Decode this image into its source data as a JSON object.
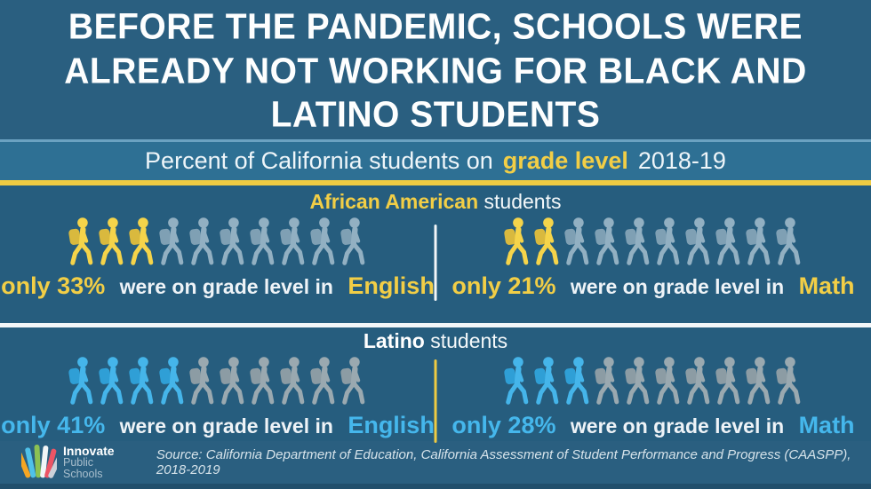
{
  "title": {
    "lines": [
      "BEFORE THE PANDEMIC, SCHOOLS WERE",
      "ALREADY NOT WORKING FOR BLACK AND",
      "LATINO STUDENTS"
    ]
  },
  "subtitle": {
    "prefix": "Percent of California students on",
    "highlight": "grade level",
    "suffix": "2018-19"
  },
  "colors": {
    "background": "#2a5f80",
    "subtitle_bar": "#2e7094",
    "gold_accent": "#efcb42",
    "section_bg": "#265d7e",
    "white_band": "#f3f6f8",
    "yellow_accent": "#f2ce46",
    "blue_accent": "#45b7ec"
  },
  "sections": [
    {
      "id": "african-american",
      "heading_highlight": "African American",
      "heading_rest": "students",
      "accent": "#f2ce46",
      "divider_color": "#f3f6f8",
      "icon_active": {
        "body": "#f5d44a",
        "pack": "#d9b93e"
      },
      "icon_muted": {
        "body": "#92b0c2",
        "pack": "#7fa0b4"
      },
      "panels": [
        {
          "stat_only": "only 33%",
          "stat_mid": "were on grade level in",
          "subject": "English",
          "percent": 33,
          "icons_total": 10,
          "icons_highlighted": 3
        },
        {
          "stat_only": "only 21%",
          "stat_mid": "were on grade level in",
          "subject": "Math",
          "percent": 21,
          "icons_total": 10,
          "icons_highlighted": 2
        }
      ]
    },
    {
      "id": "latino",
      "heading_highlight": "Latino",
      "heading_rest": "students",
      "accent": "#45b7ec",
      "heading_highlight_color": "#ffffff",
      "divider_color": "#efcb42",
      "icon_active": {
        "body": "#45b5ea",
        "pack": "#2f9fd6"
      },
      "icon_muted": {
        "body": "#9aa9b0",
        "pack": "#8c9ca4"
      },
      "panels": [
        {
          "stat_only": "only 41%",
          "stat_mid": "were on grade level in",
          "subject": "English",
          "percent": 41,
          "icons_total": 10,
          "icons_highlighted": 4
        },
        {
          "stat_only": "only 28%",
          "stat_mid": "were on grade level in",
          "subject": "Math",
          "percent": 28,
          "icons_total": 10,
          "icons_highlighted": 3
        }
      ]
    }
  ],
  "footer": {
    "logo_name": "Innovate",
    "logo_sub": "Public Schools",
    "source": "Source: California Department of Education, California Assessment of Student Performance and Progress (CAASPP), 2018-2019"
  },
  "chart_data": {
    "type": "bar",
    "title": "Percent of California students on grade level 2018-19",
    "categories": [
      "English",
      "Math"
    ],
    "series": [
      {
        "name": "African American students",
        "values": [
          33,
          21
        ]
      },
      {
        "name": "Latino students",
        "values": [
          41,
          28
        ]
      }
    ],
    "unit": "percent",
    "ylim": [
      0,
      100
    ],
    "representation": "pictograph: 10 student icons per stat, highlighted icons = percent / 10 rounded",
    "legend_position": "section headings",
    "grid": false
  }
}
